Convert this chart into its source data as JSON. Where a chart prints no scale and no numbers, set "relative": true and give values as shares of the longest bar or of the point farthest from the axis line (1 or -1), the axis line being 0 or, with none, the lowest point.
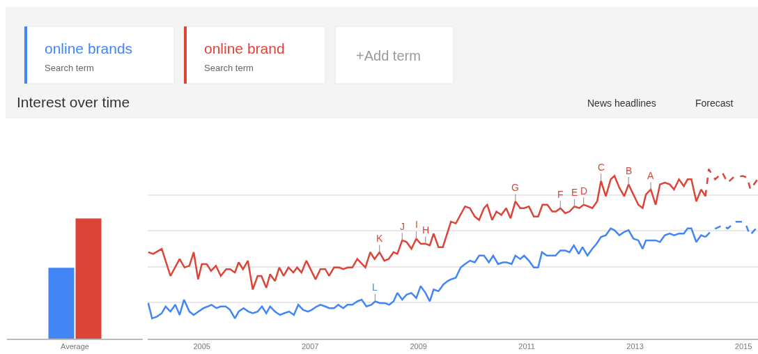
{
  "chart_data": [
    {
      "type": "bar",
      "relative": true,
      "categories": [
        "Average"
      ],
      "series": [
        {
          "color": "#4285f4",
          "values": [
            0.59
          ]
        },
        {
          "color": "#db4437",
          "values": [
            1
          ]
        }
      ]
    },
    {
      "type": "line",
      "relative": true,
      "title": "Interest over time",
      "xlim": [
        2004.0,
        2015.27
      ],
      "xticks": [
        2005,
        2007,
        2009,
        2011,
        2013,
        2015
      ],
      "grid": "y",
      "legend": false,
      "annotations": [
        "Search term",
        "Search term",
        "+Add term",
        "News headlines",
        "Forecast",
        {
          "text": "A",
          "x": 2013.29,
          "y": 0.88
        },
        {
          "text": "B",
          "x": 2012.88,
          "y": 0.91
        },
        {
          "text": "C",
          "x": 2012.37,
          "y": 0.93
        },
        {
          "text": "D",
          "x": 2012.05,
          "y": 0.79
        },
        {
          "text": "E",
          "x": 2011.88,
          "y": 0.78
        },
        {
          "text": "F",
          "x": 2011.62,
          "y": 0.77
        },
        {
          "text": "G",
          "x": 2010.79,
          "y": 0.81
        },
        {
          "text": "H",
          "x": 2009.13,
          "y": 0.56
        },
        {
          "text": "I",
          "x": 2008.96,
          "y": 0.59
        },
        {
          "text": "J",
          "x": 2008.7,
          "y": 0.58
        },
        {
          "text": "K",
          "x": 2008.28,
          "y": 0.51
        },
        {
          "text": "L",
          "x": 2008.2,
          "y": 0.22
        }
      ],
      "series": [
        {
          "name": "online brands",
          "color": "#4285f4",
          "line_style": "solid",
          "x": [
            2004.01,
            2004.08,
            2004.17,
            2004.26,
            2004.33,
            2004.42,
            2004.51,
            2004.59,
            2004.67,
            2004.77,
            2004.85,
            2004.94,
            2005.03,
            2005.11,
            2005.18,
            2005.27,
            2005.35,
            2005.44,
            2005.52,
            2005.61,
            2005.68,
            2005.77,
            2005.86,
            2005.94,
            2006.03,
            2006.11,
            2006.19,
            2006.26,
            2006.35,
            2006.44,
            2006.52,
            2006.61,
            2006.7,
            2006.78,
            2006.87,
            2006.96,
            2007.03,
            2007.12,
            2007.19,
            2007.28,
            2007.35,
            2007.44,
            2007.52,
            2007.61,
            2007.69,
            2007.78,
            2007.87,
            2007.95,
            2008.04,
            2008.13,
            2008.2,
            2008.29,
            2008.38,
            2008.46,
            2008.54,
            2008.61,
            2008.7,
            2008.78,
            2008.87,
            2008.96,
            2009.04,
            2009.13,
            2009.21,
            2009.28,
            2009.37,
            2009.46,
            2009.54,
            2009.6,
            2009.69,
            2009.78,
            2009.86,
            2009.95,
            2010.04,
            2010.12,
            2010.21,
            2010.3,
            2010.38,
            2010.47,
            2010.56,
            2010.63,
            2010.72,
            2010.79,
            2010.88,
            2010.95,
            2011.04,
            2011.13,
            2011.21,
            2011.28,
            2011.37,
            2011.46,
            2011.53,
            2011.62,
            2011.71,
            2011.79,
            2011.87,
            2011.96,
            2012.03,
            2012.12,
            2012.21,
            2012.29,
            2012.37,
            2012.46,
            2012.55,
            2012.62,
            2012.71,
            2012.8,
            2012.88,
            2012.97,
            2013.06,
            2013.14,
            2013.2,
            2013.29,
            2013.38,
            2013.46,
            2013.55,
            2013.64,
            2013.72,
            2013.81,
            2013.9,
            2013.97,
            2014.04,
            2014.13,
            2014.22,
            2014.3
          ],
          "values": [
            0.21,
            0.12,
            0.13,
            0.15,
            0.19,
            0.16,
            0.2,
            0.14,
            0.23,
            0.16,
            0.14,
            0.16,
            0.18,
            0.19,
            0.2,
            0.18,
            0.19,
            0.19,
            0.17,
            0.12,
            0.16,
            0.18,
            0.16,
            0.15,
            0.16,
            0.19,
            0.15,
            0.19,
            0.16,
            0.14,
            0.15,
            0.16,
            0.14,
            0.2,
            0.17,
            0.16,
            0.17,
            0.19,
            0.2,
            0.19,
            0.18,
            0.18,
            0.2,
            0.18,
            0.2,
            0.2,
            0.22,
            0.23,
            0.19,
            0.2,
            0.22,
            0.21,
            0.21,
            0.2,
            0.22,
            0.27,
            0.23,
            0.26,
            0.27,
            0.24,
            0.31,
            0.27,
            0.22,
            0.29,
            0.28,
            0.32,
            0.34,
            0.35,
            0.36,
            0.42,
            0.44,
            0.46,
            0.45,
            0.49,
            0.49,
            0.45,
            0.49,
            0.44,
            0.45,
            0.45,
            0.44,
            0.49,
            0.47,
            0.49,
            0.46,
            0.42,
            0.42,
            0.51,
            0.49,
            0.49,
            0.49,
            0.52,
            0.52,
            0.51,
            0.55,
            0.5,
            0.54,
            0.49,
            0.53,
            0.56,
            0.6,
            0.61,
            0.65,
            0.64,
            0.61,
            0.63,
            0.64,
            0.59,
            0.58,
            0.53,
            0.58,
            0.58,
            0.58,
            0.57,
            0.61,
            0.62,
            0.61,
            0.62,
            0.62,
            0.65,
            0.65,
            0.57,
            0.61,
            0.6
          ]
        },
        {
          "color": "#4285f4",
          "line_style": "dashed",
          "x": [
            2014.3,
            2014.39,
            2014.49,
            2014.62,
            2014.71,
            2014.86,
            2014.99,
            2015.05,
            2015.12,
            2015.26
          ],
          "values": [
            0.6,
            0.63,
            0.65,
            0.67,
            0.65,
            0.69,
            0.69,
            0.67,
            0.61,
            0.66
          ]
        },
        {
          "name": "online brand",
          "color": "#db4437",
          "line_style": "solid",
          "x": [
            2004.01,
            2004.1,
            2004.26,
            2004.42,
            2004.59,
            2004.68,
            2004.77,
            2004.85,
            2004.93,
            2005.0,
            2005.09,
            2005.17,
            2005.26,
            2005.35,
            2005.45,
            2005.52,
            2005.61,
            2005.68,
            2005.76,
            2005.85,
            2005.94,
            2006.03,
            2006.1,
            2006.19,
            2006.26,
            2006.35,
            2006.43,
            2006.51,
            2006.6,
            2006.69,
            2006.76,
            2006.84,
            2006.93,
            2007.1,
            2007.19,
            2007.28,
            2007.35,
            2007.44,
            2007.53,
            2007.61,
            2007.7,
            2007.78,
            2007.87,
            2008.02,
            2008.11,
            2008.19,
            2008.28,
            2008.37,
            2008.45,
            2008.54,
            2008.61,
            2008.7,
            2008.78,
            2008.87,
            2008.96,
            2009.04,
            2009.13,
            2009.21,
            2009.28,
            2009.37,
            2009.45,
            2009.6,
            2009.69,
            2009.86,
            2009.95,
            2010.04,
            2010.12,
            2010.21,
            2010.27,
            2010.36,
            2010.44,
            2010.53,
            2010.62,
            2010.7,
            2010.79,
            2010.88,
            2010.95,
            2011.04,
            2011.13,
            2011.21,
            2011.29,
            2011.38,
            2011.47,
            2011.54,
            2011.62,
            2011.71,
            2011.79,
            2011.88,
            2011.97,
            2012.05,
            2012.14,
            2012.21,
            2012.3,
            2012.37,
            2012.46,
            2012.55,
            2012.62,
            2012.71,
            2012.8,
            2012.88,
            2012.97,
            2013.06,
            2013.14,
            2013.2,
            2013.29,
            2013.38,
            2013.46,
            2013.55,
            2013.64,
            2013.72,
            2013.81,
            2013.9,
            2013.97,
            2014.04,
            2014.13,
            2014.22,
            2014.3
          ],
          "values": [
            0.51,
            0.5,
            0.53,
            0.37,
            0.47,
            0.42,
            0.43,
            0.51,
            0.35,
            0.44,
            0.44,
            0.4,
            0.43,
            0.37,
            0.41,
            0.41,
            0.39,
            0.45,
            0.41,
            0.46,
            0.29,
            0.37,
            0.37,
            0.3,
            0.38,
            0.34,
            0.42,
            0.37,
            0.42,
            0.39,
            0.42,
            0.39,
            0.46,
            0.35,
            0.41,
            0.41,
            0.37,
            0.42,
            0.42,
            0.41,
            0.42,
            0.42,
            0.47,
            0.42,
            0.51,
            0.47,
            0.51,
            0.46,
            0.47,
            0.51,
            0.5,
            0.58,
            0.57,
            0.53,
            0.59,
            0.56,
            0.56,
            0.55,
            0.62,
            0.54,
            0.54,
            0.69,
            0.68,
            0.78,
            0.77,
            0.72,
            0.7,
            0.77,
            0.79,
            0.7,
            0.75,
            0.73,
            0.77,
            0.71,
            0.81,
            0.77,
            0.77,
            0.78,
            0.72,
            0.72,
            0.79,
            0.79,
            0.75,
            0.75,
            0.77,
            0.74,
            0.75,
            0.78,
            0.77,
            0.79,
            0.78,
            0.77,
            0.81,
            0.93,
            0.84,
            0.94,
            0.96,
            0.89,
            0.84,
            0.91,
            0.85,
            0.79,
            0.77,
            0.85,
            0.88,
            0.79,
            0.91,
            0.92,
            0.91,
            0.88,
            0.94,
            0.9,
            0.94,
            0.94,
            0.81,
            0.88,
            0.84
          ]
        },
        {
          "color": "#db4437",
          "line_style": "dashed",
          "x": [
            2014.3,
            2014.36,
            2014.48,
            2014.61,
            2014.71,
            2014.81,
            2014.99,
            2015.07,
            2015.13,
            2015.26
          ],
          "values": [
            0.84,
            1.0,
            0.94,
            0.98,
            0.92,
            0.95,
            0.96,
            0.95,
            0.88,
            0.94
          ]
        }
      ]
    }
  ]
}
